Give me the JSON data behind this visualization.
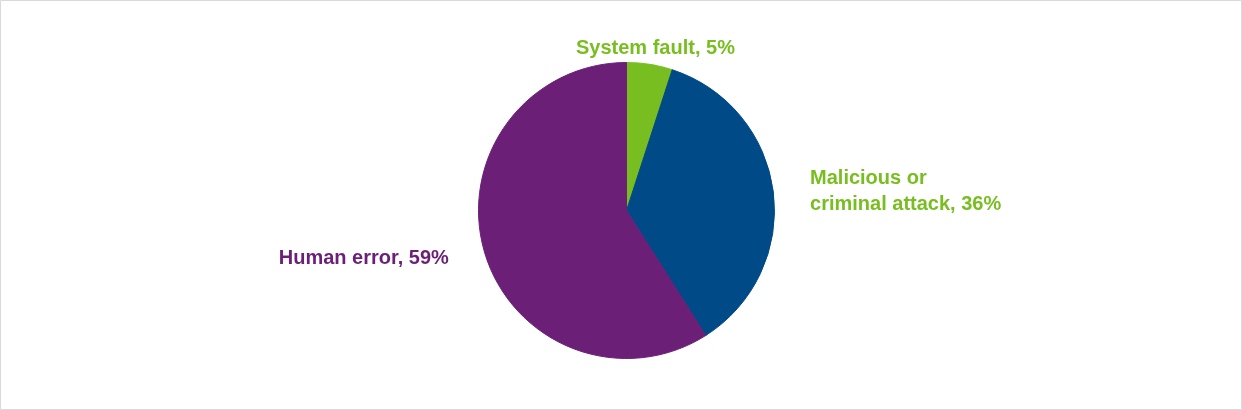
{
  "chart_data": {
    "type": "pie",
    "categories": [
      "System fault, 5%",
      "Malicious or criminal attack, 36%",
      "Human error, 59%"
    ],
    "values": [
      5,
      36,
      59
    ],
    "colors": [
      "#78be20",
      "#004a87",
      "#6c1f77"
    ]
  }
}
